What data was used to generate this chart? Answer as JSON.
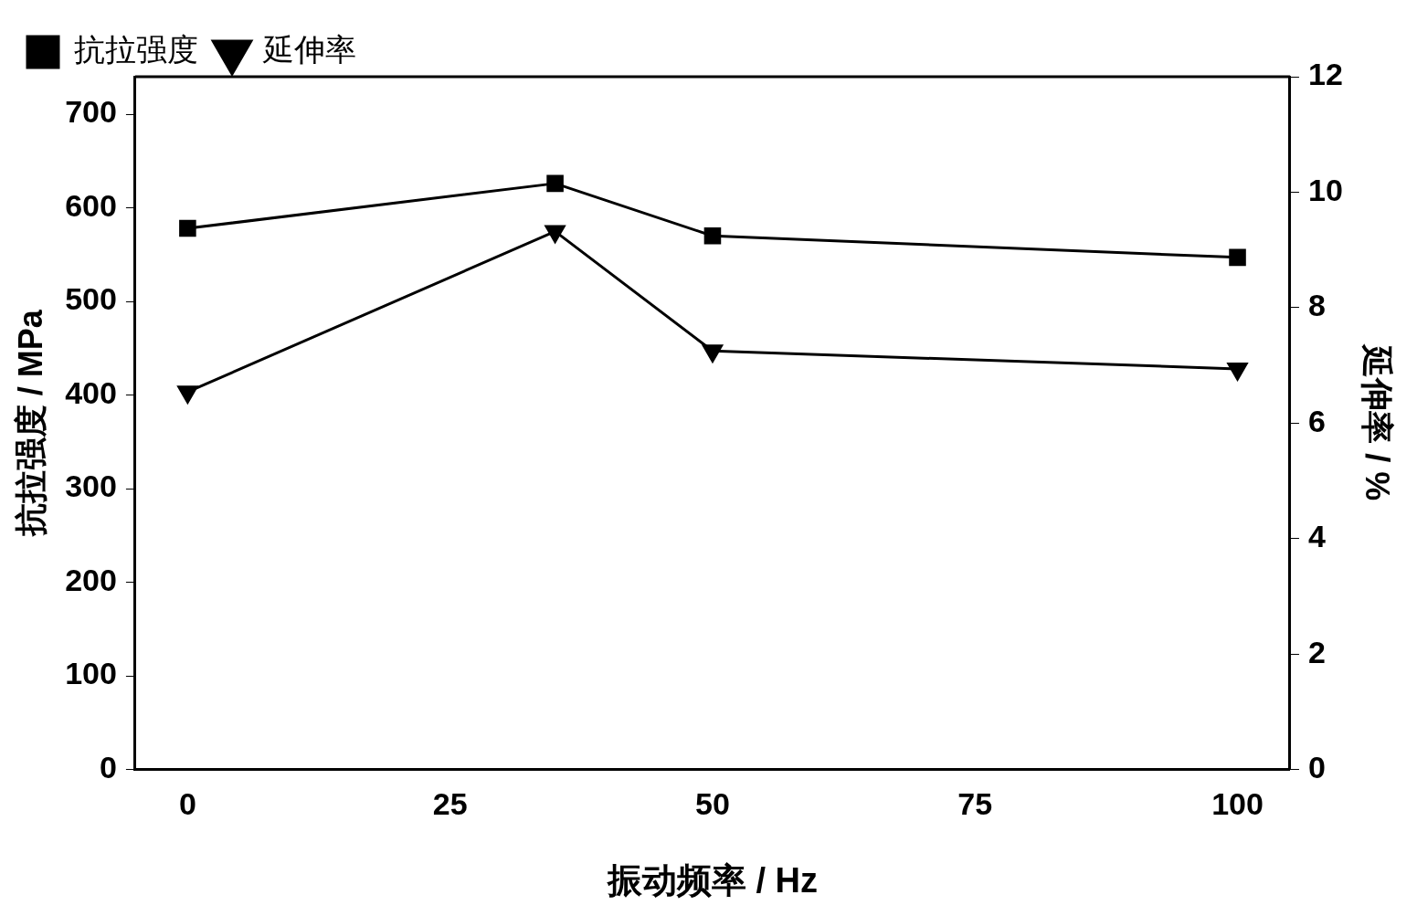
{
  "chart_data": {
    "type": "line",
    "xlabel": "振动频率 / Hz",
    "ylabel": "抗拉强度 / MPa",
    "y2label": "延伸率 / %",
    "x": [
      0,
      35,
      50,
      100
    ],
    "series": [
      {
        "name": "抗拉强度",
        "color": "#000000",
        "marker": "square",
        "values": [
          578,
          626,
          570,
          547
        ]
      },
      {
        "name": "延伸率",
        "color": "#000000",
        "marker": "triangle",
        "axis": "y2",
        "values": [
          6.54,
          9.32,
          7.25,
          6.94
        ]
      }
    ],
    "xlim": [
      -5,
      105
    ],
    "xticks": [
      0,
      25,
      50,
      75,
      100
    ],
    "ylim": [
      0,
      740
    ],
    "yticks": [
      0,
      100,
      200,
      300,
      400,
      500,
      600,
      700
    ],
    "y2lim": [
      0,
      12
    ],
    "y2ticks": [
      0,
      2,
      4,
      6,
      8,
      10,
      12
    ],
    "legend": "top left",
    "grid": false,
    "line_style": "solid"
  }
}
